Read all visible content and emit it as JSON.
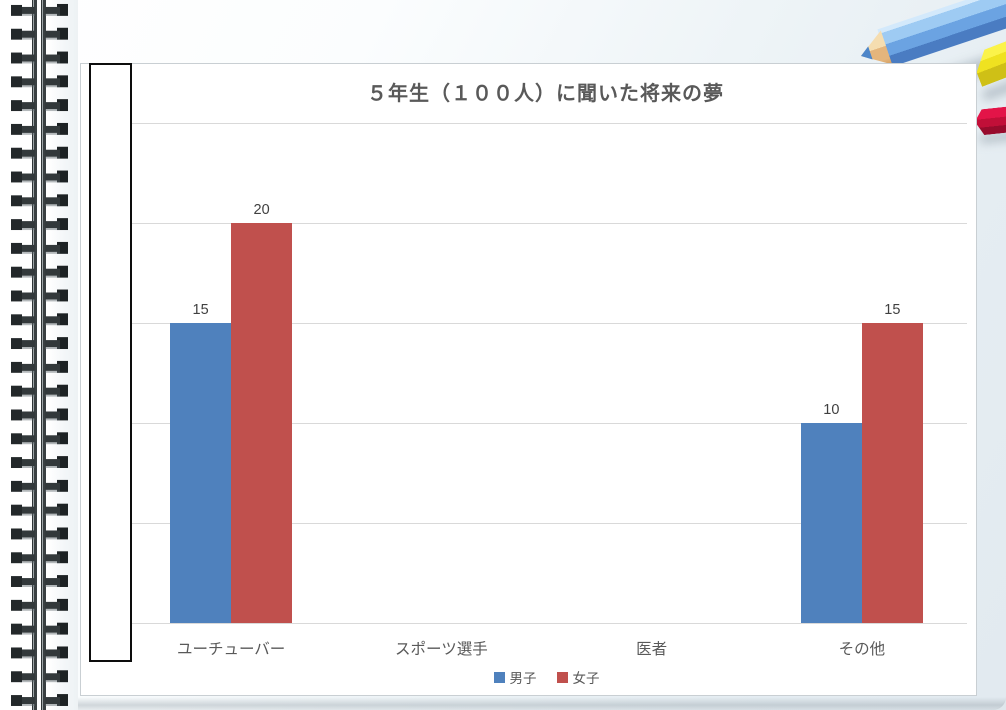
{
  "chart_data": {
    "type": "bar",
    "title": "５年生（１００人）に聞いた将来の夢",
    "categories": [
      "ユーチューバー",
      "スポーツ選手",
      "医者",
      "その他"
    ],
    "series": [
      {
        "name": "男子",
        "color": "#4f81bd",
        "values": [
          15,
          0,
          0,
          10
        ]
      },
      {
        "name": "女子",
        "color": "#c0504d",
        "values": [
          20,
          0,
          0,
          15
        ]
      }
    ],
    "ylim": [
      0,
      25
    ],
    "grid_interval": 5,
    "gridline_color": "#d9d9d9",
    "grid": "horizontal",
    "legend_position": "bottom",
    "data_labels": true,
    "visible_data_labels": [
      "15",
      "20",
      "10",
      "15"
    ],
    "y_axis_labels_hidden_by_white_box": true
  },
  "decor": {
    "notebook": "spiral-bound-page",
    "pencil_colors": {
      "blue": "#6ba3e2",
      "yellow": "#efe220",
      "red": "#c10f38"
    }
  }
}
